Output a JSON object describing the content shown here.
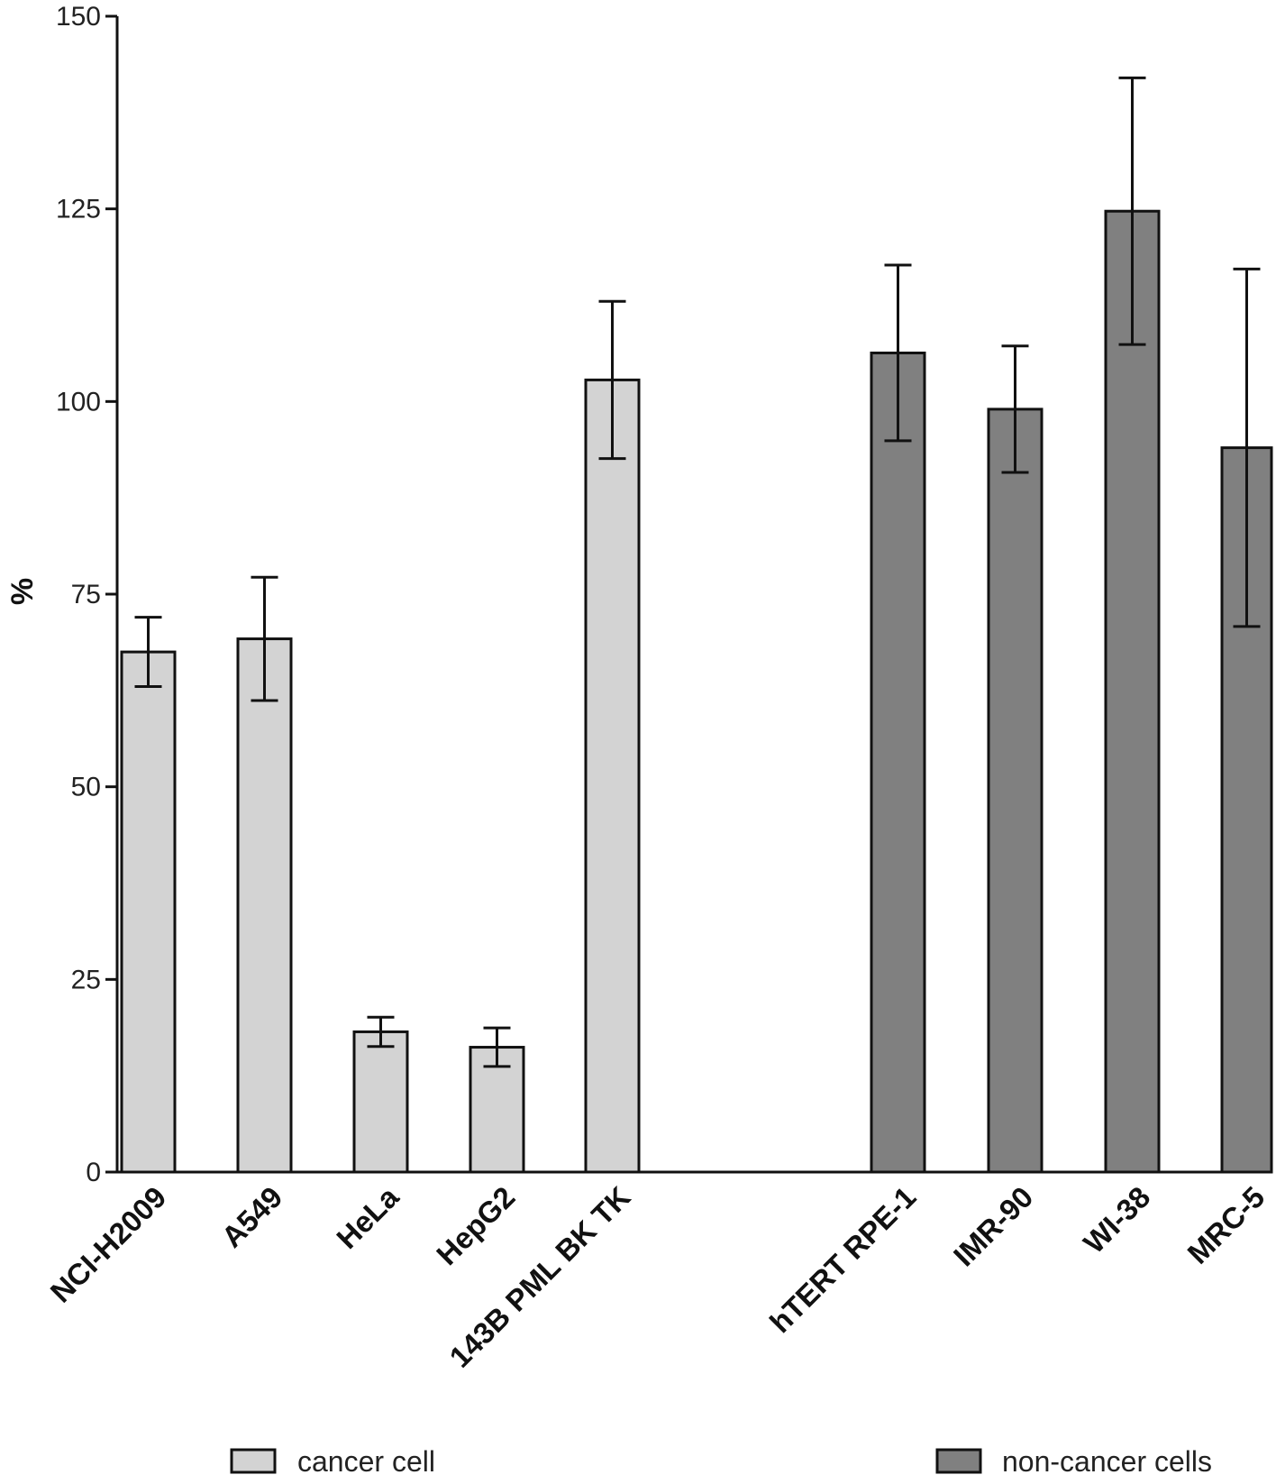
{
  "chart_data": {
    "type": "bar",
    "ylabel": "%",
    "xlabel": "",
    "ylim": [
      0,
      150
    ],
    "yticks": [
      0,
      25,
      50,
      75,
      100,
      125,
      150
    ],
    "grid": false,
    "legend_position": "bottom",
    "colors": {
      "cancer": "#d3d3d3",
      "non_cancer": "#808080",
      "outline": "#111111"
    },
    "groups": [
      {
        "name": "cancer cell",
        "color": "#d3d3d3",
        "bars": [
          {
            "label": "NCI-H2009",
            "value": 67.5,
            "error": 4.5
          },
          {
            "label": "A549",
            "value": 69.2,
            "error": 8.0
          },
          {
            "label": "HeLa",
            "value": 18.2,
            "error": 1.9
          },
          {
            "label": "HepG2",
            "value": 16.2,
            "error": 2.5
          },
          {
            "label": "143B PML BK TK",
            "value": 102.8,
            "error": 10.2
          }
        ]
      },
      {
        "name": "non-cancer cells",
        "color": "#808080",
        "bars": [
          {
            "label": "hTERT RPE-1",
            "value": 106.3,
            "error": 11.4
          },
          {
            "label": "IMR-90",
            "value": 99.0,
            "error": 8.2
          },
          {
            "label": "WI-38",
            "value": 124.7,
            "error": 17.3
          },
          {
            "label": "MRC-5",
            "value": 94.0,
            "error": 23.2
          }
        ]
      }
    ]
  }
}
